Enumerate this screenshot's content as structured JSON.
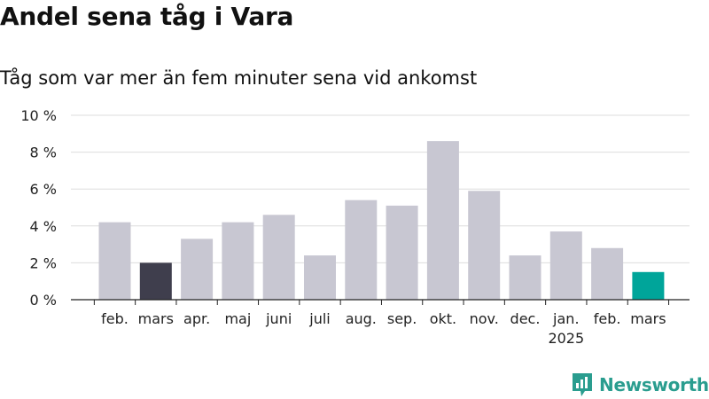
{
  "title": "Andel sena tåg i Vara",
  "subtitle": "Tåg som var mer än fem minuter sena vid ankomst",
  "brand": {
    "name": "Newsworthy",
    "color": "#2a9d8f",
    "icon": "newsworthy-logo-icon"
  },
  "colors": {
    "bar_default": "#c8c7d2",
    "bar_highlight_dark": "#3f3e4d",
    "bar_highlight_teal": "#00a59a",
    "grid": "#dddddd",
    "axis": "#222222"
  },
  "chart_data": {
    "type": "bar",
    "title": "",
    "xlabel": "",
    "ylabel": "",
    "ylim": [
      0,
      10
    ],
    "y_ticks": [
      0,
      2,
      4,
      6,
      8,
      10
    ],
    "y_tick_labels": [
      "0 %",
      "2 %",
      "4 %",
      "6 %",
      "8 %",
      "10 %"
    ],
    "grid": true,
    "categories": [
      "feb.",
      "mars",
      "apr.",
      "maj",
      "juni",
      "juli",
      "aug.",
      "sep.",
      "okt.",
      "nov.",
      "dec.",
      "jan.",
      "feb.",
      "mars"
    ],
    "category_sublabels": [
      "",
      "",
      "",
      "",
      "",
      "",
      "",
      "",
      "",
      "",
      "",
      "2025",
      "",
      ""
    ],
    "values": [
      4.2,
      2.0,
      3.3,
      4.2,
      4.6,
      2.4,
      5.4,
      5.1,
      8.6,
      5.9,
      2.4,
      3.7,
      2.8,
      1.5
    ],
    "highlight": [
      "",
      "dark",
      "",
      "",
      "",
      "",
      "",
      "",
      "",
      "",
      "",
      "",
      "",
      "teal"
    ]
  }
}
